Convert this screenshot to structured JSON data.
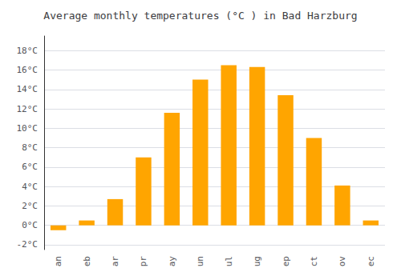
{
  "chart_data": {
    "type": "bar",
    "title": "Average monthly temperatures (°C ) in Bad Harzburg",
    "categories": [
      "an",
      "eb",
      "ar",
      "pr",
      "ay",
      "un",
      "ul",
      "ug",
      "ep",
      "ct",
      "ov",
      "ec"
    ],
    "values": [
      -0.5,
      0.5,
      2.7,
      7.0,
      11.6,
      15.0,
      16.5,
      16.3,
      13.4,
      9.0,
      4.1,
      0.5
    ],
    "color": "#FFA500",
    "ylim": [
      -2.5,
      19.5
    ],
    "yticks": [
      {
        "value": -2,
        "label": "-2°C"
      },
      {
        "value": 0,
        "label": "0°C"
      },
      {
        "value": 2,
        "label": "2°C"
      },
      {
        "value": 4,
        "label": "4°C"
      },
      {
        "value": 6,
        "label": "6°C"
      },
      {
        "value": 8,
        "label": "8°C"
      },
      {
        "value": 10,
        "label": "10°C"
      },
      {
        "value": 12,
        "label": "12°C"
      },
      {
        "value": 14,
        "label": "14°C"
      },
      {
        "value": 16,
        "label": "16°C"
      },
      {
        "value": 18,
        "label": "18°C"
      }
    ],
    "grid": true
  }
}
